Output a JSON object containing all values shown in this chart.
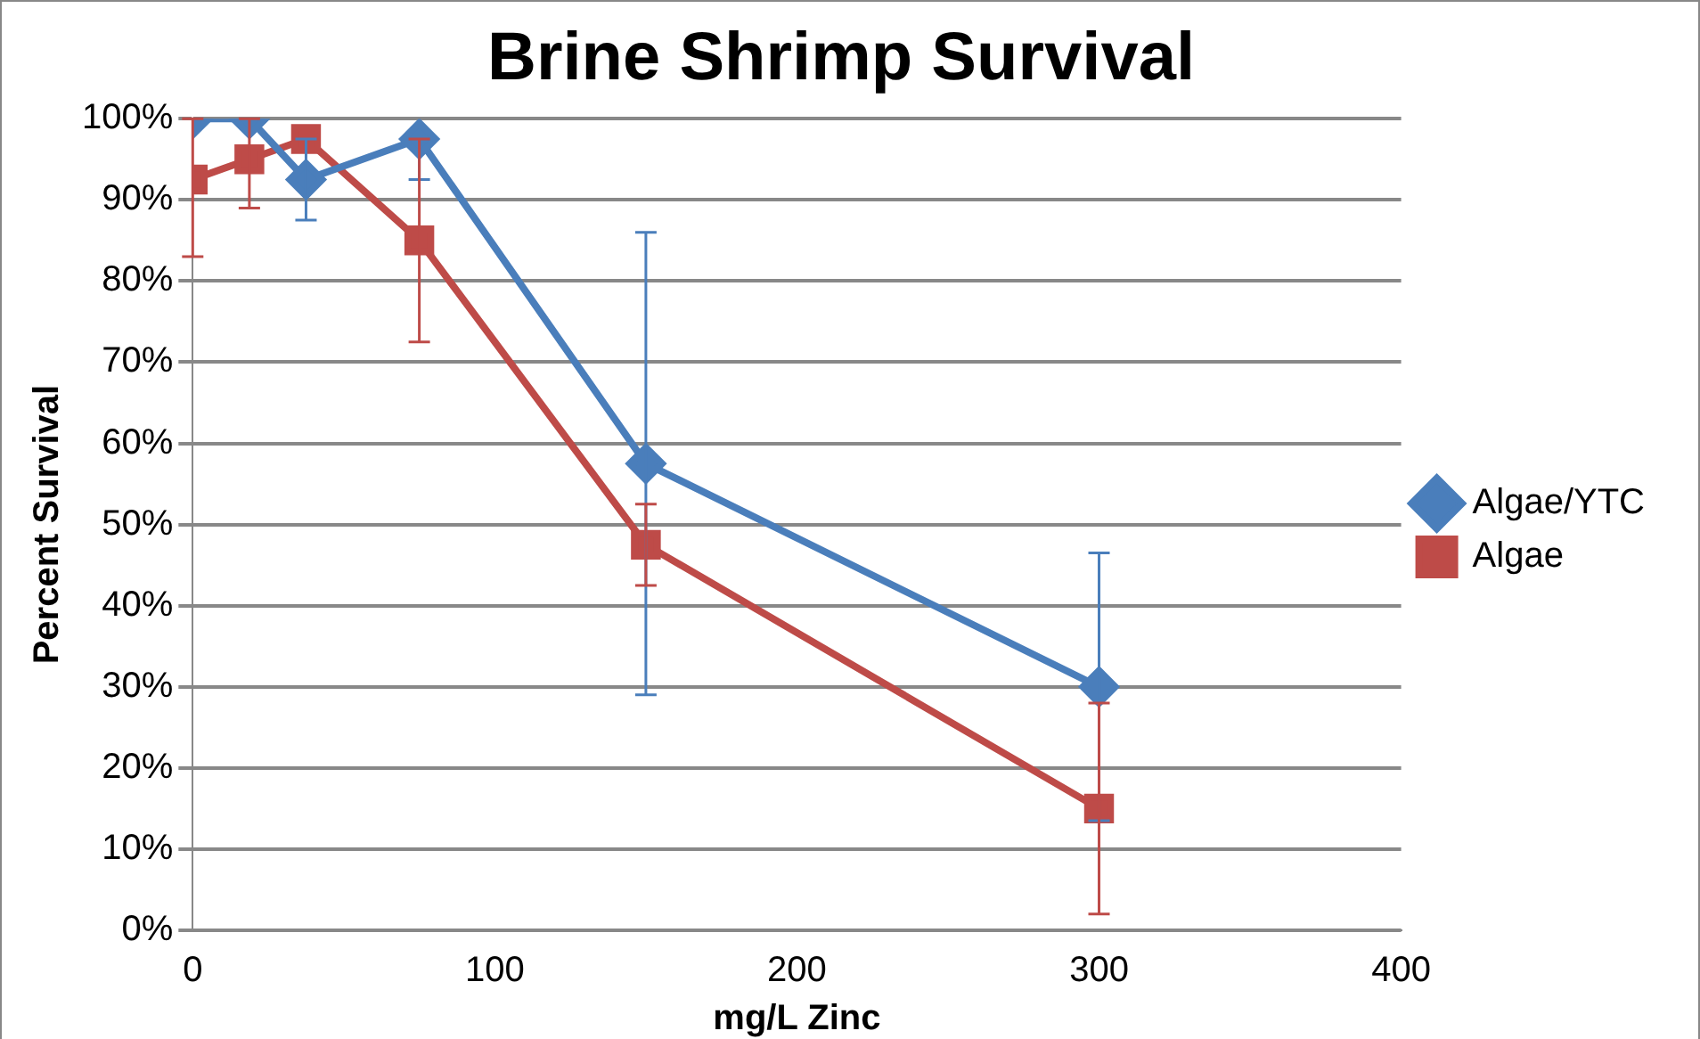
{
  "chart_data": {
    "type": "line",
    "title": "Brine Shrimp Survival",
    "xlabel": "mg/L Zinc",
    "ylabel": "Percent Survival",
    "xlim": [
      0,
      400
    ],
    "xticks": [
      0,
      100,
      200,
      300,
      400
    ],
    "ylim": [
      0,
      100
    ],
    "yticks": [
      {
        "value": 0,
        "label": "0%"
      },
      {
        "value": 10,
        "label": "10%"
      },
      {
        "value": 20,
        "label": "20%"
      },
      {
        "value": 30,
        "label": "30%"
      },
      {
        "value": 40,
        "label": "40%"
      },
      {
        "value": 50,
        "label": "50%"
      },
      {
        "value": 60,
        "label": "60%"
      },
      {
        "value": 70,
        "label": "70%"
      },
      {
        "value": 80,
        "label": "80%"
      },
      {
        "value": 90,
        "label": "90%"
      },
      {
        "value": 100,
        "label": "100%"
      }
    ],
    "grid": "y",
    "legend": "right",
    "line_style": "solid",
    "series": [
      {
        "name": "Algae/YTC",
        "color": "#4a7ebb",
        "marker": "diamond",
        "x": [
          0,
          18.75,
          37.5,
          75,
          150,
          300
        ],
        "values": [
          100,
          100,
          92.5,
          97.5,
          57.5,
          30
        ],
        "errors": [
          null,
          null,
          [
            87.5,
            97.5
          ],
          [
            92.5,
            97.5
          ],
          [
            29,
            86
          ],
          [
            13.5,
            46.5
          ]
        ]
      },
      {
        "name": "Algae",
        "color": "#be4b48",
        "marker": "square",
        "x": [
          0,
          18.75,
          37.5,
          75,
          150,
          300
        ],
        "values": [
          92.5,
          95,
          97.5,
          85,
          47.5,
          15
        ],
        "errors": [
          [
            83,
            100
          ],
          [
            89,
            100
          ],
          null,
          [
            72.5,
            97.5
          ],
          [
            42.5,
            52.5
          ],
          [
            2,
            28
          ]
        ]
      }
    ]
  }
}
